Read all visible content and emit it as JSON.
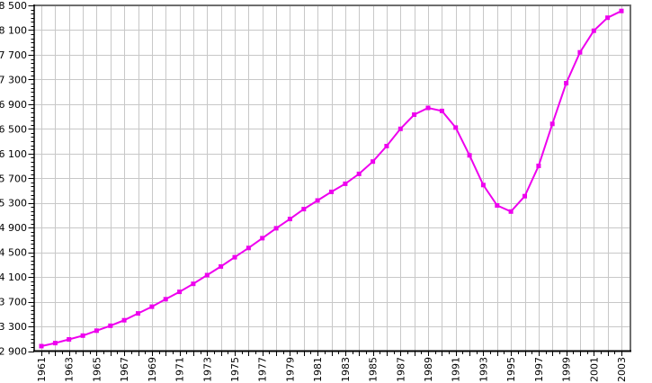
{
  "chart_data": {
    "type": "line",
    "title": "",
    "xlabel": "",
    "ylabel": "",
    "x": [
      1961,
      1962,
      1963,
      1964,
      1965,
      1966,
      1967,
      1968,
      1969,
      1970,
      1971,
      1972,
      1973,
      1974,
      1975,
      1976,
      1977,
      1978,
      1979,
      1980,
      1981,
      1982,
      1983,
      1984,
      1985,
      1986,
      1987,
      1988,
      1989,
      1990,
      1991,
      1992,
      1993,
      1994,
      1995,
      1996,
      1997,
      1998,
      1999,
      2000,
      2001,
      2002,
      2003
    ],
    "series": [
      {
        "name": "population-thousands",
        "marker": "square",
        "values": [
          2980,
          3030,
          3090,
          3150,
          3230,
          3310,
          3400,
          3510,
          3620,
          3740,
          3860,
          3990,
          4130,
          4270,
          4420,
          4570,
          4730,
          4890,
          5040,
          5200,
          5340,
          5480,
          5610,
          5770,
          5970,
          6220,
          6500,
          6730,
          6840,
          6790,
          6520,
          6070,
          5590,
          5260,
          5160,
          5410,
          5900,
          6580,
          7240,
          7740,
          8090,
          8300,
          8410
        ]
      }
    ],
    "xlim": [
      1961,
      2003
    ],
    "ylim": [
      2900,
      8500
    ],
    "ytick_step": 400,
    "xtick_years": [
      1961,
      1963,
      1965,
      1967,
      1969,
      1971,
      1973,
      1975,
      1977,
      1979,
      1981,
      1983,
      1985,
      1987,
      1989,
      1991,
      1993,
      1995,
      1997,
      1999,
      2001,
      2003
    ],
    "xtick_labels": [
      "1961",
      "1963",
      "1965",
      "1967",
      "1969",
      "1971",
      "1973",
      "1975",
      "1977",
      "1979",
      "1981",
      "1983",
      "1985",
      "1987",
      "1989",
      "1991",
      "1993",
      "1995",
      "1997",
      "1999",
      "2001",
      "2003"
    ],
    "ytick_values": [
      2900,
      3300,
      3700,
      4100,
      4500,
      4900,
      5300,
      5700,
      6100,
      6500,
      6900,
      7300,
      7700,
      8100,
      8500
    ],
    "ytick_labels": [
      "2 900",
      "3 300",
      "3 700",
      "4 100",
      "4 500",
      "4 900",
      "5 300",
      "5 700",
      "6 100",
      "6 500",
      "6 900",
      "7 300",
      "7 700",
      "8 100",
      "8 500"
    ],
    "grid": true,
    "legend": false,
    "y_minor_per_major": 6,
    "x_minor_per_year": 2
  },
  "colors": {
    "background": "#ffffff",
    "line": "#ee00ee",
    "marker": "#ee00ee",
    "gridline": "#c8c8c8",
    "axis": "#000000",
    "border_top_right": "#6e6e6e",
    "text": "#000000"
  }
}
